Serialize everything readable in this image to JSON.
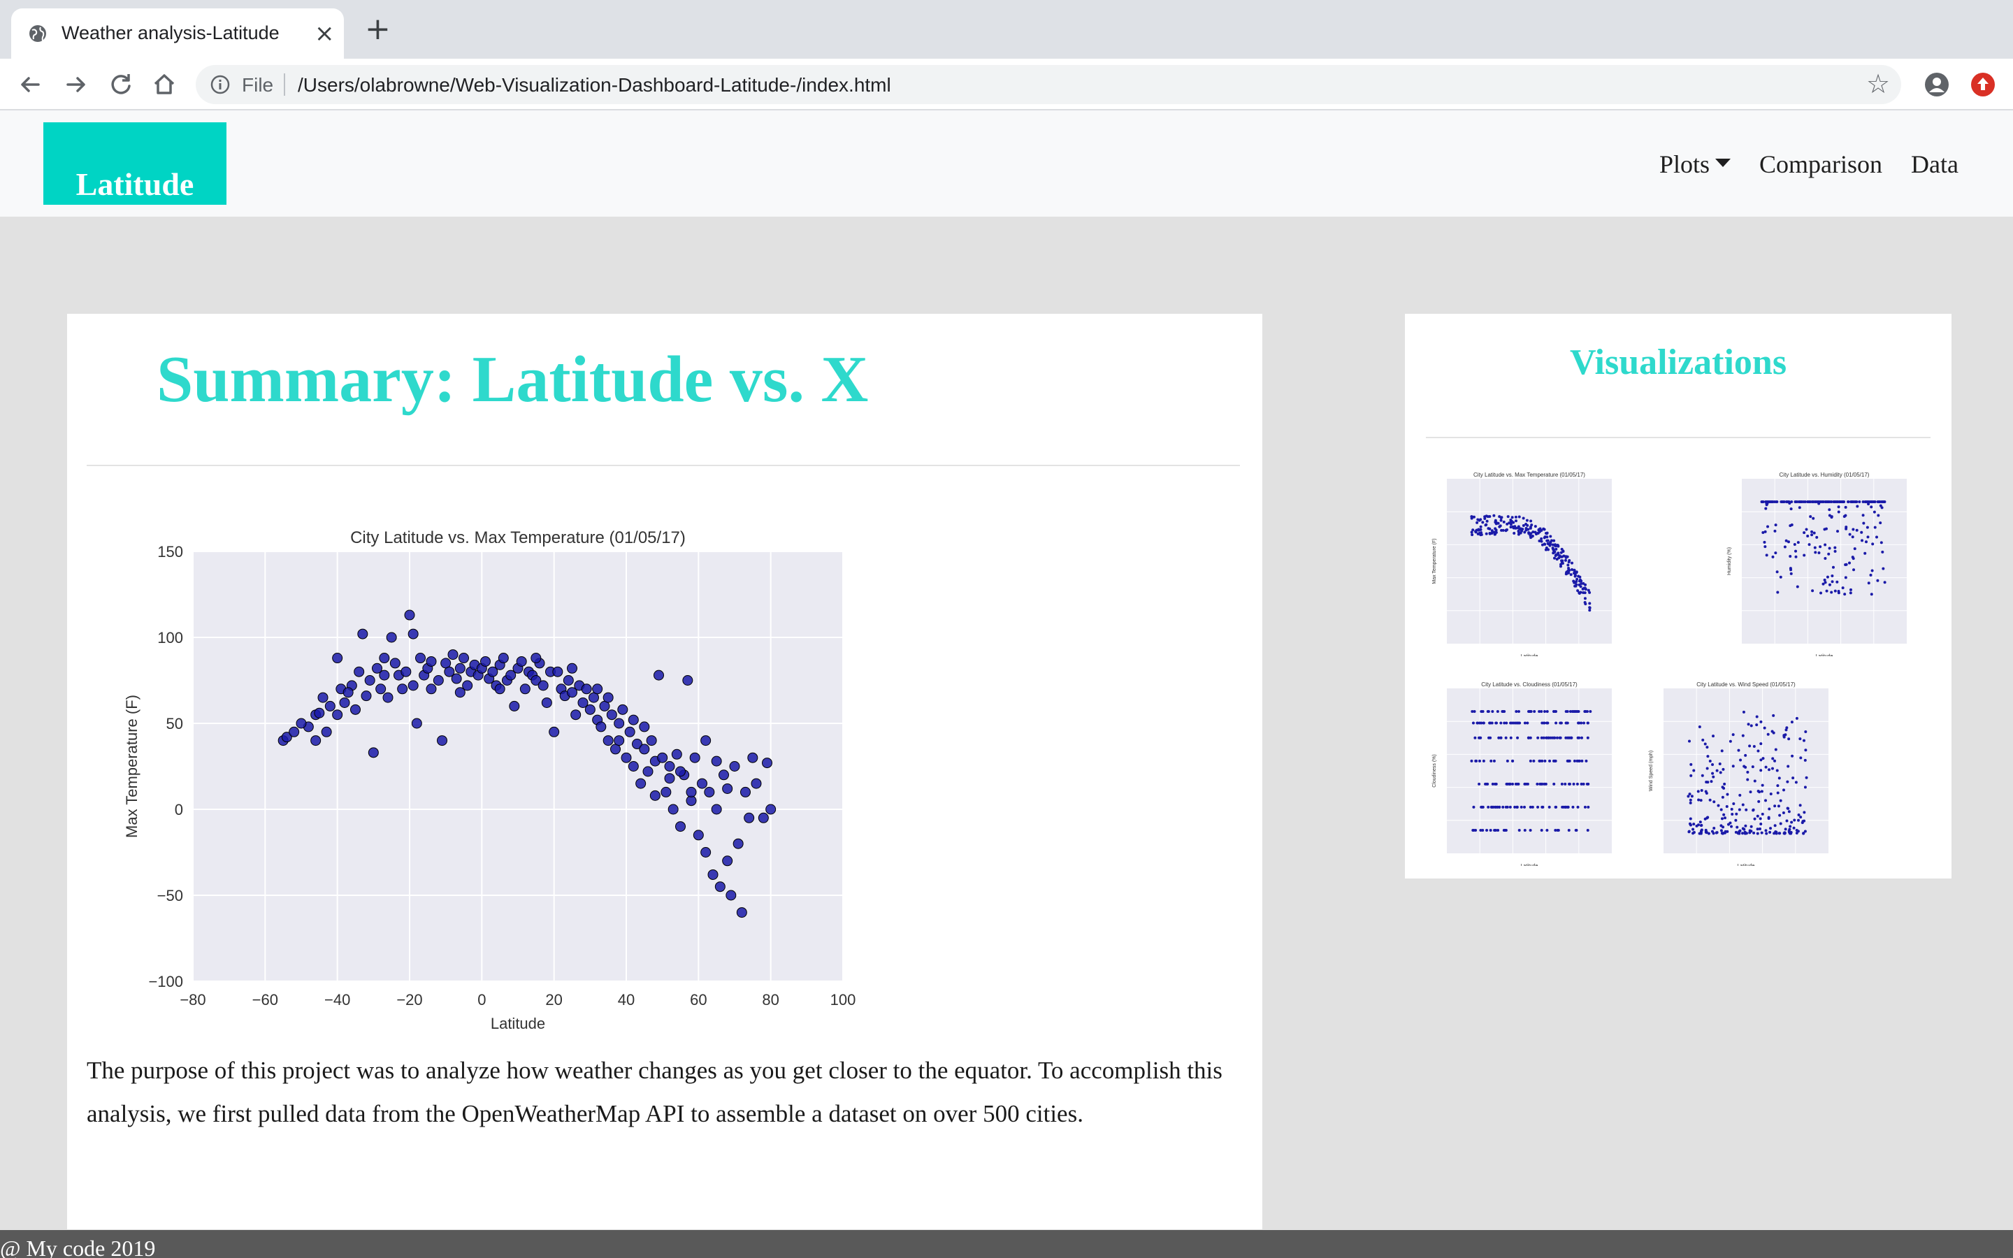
{
  "browser": {
    "tab_title": "Weather analysis-Latitude",
    "file_label": "File",
    "url": "/Users/olabrowne/Web-Visualization-Dashboard-Latitude-/index.html"
  },
  "nav": {
    "brand": "Latitude",
    "links": [
      "Plots",
      "Comparison",
      "Data"
    ]
  },
  "main": {
    "title": "Summary: Latitude vs. X",
    "description": "The purpose of this project was to analyze how weather changes as you get closer to the equator. To accomplish this analysis, we first pulled data from the OpenWeatherMap API to assemble a dataset on over 500 cities."
  },
  "side": {
    "title": "Visualizations"
  },
  "footer": {
    "text": "@ My code 2019"
  },
  "colors": {
    "brand": "#00d4c4",
    "heading": "#2ed9cc",
    "plot_bg": "#eaeaf2",
    "marker": "#1a1aa8"
  },
  "chart_data": [
    {
      "type": "scatter",
      "title": "City Latitude vs. Max Temperature (01/05/17)",
      "xlabel": "Latitude",
      "ylabel": "Max Temperature (F)",
      "xlim": [
        -80,
        100
      ],
      "ylim": [
        -100,
        150
      ],
      "xticks": [
        -80,
        -60,
        -40,
        -20,
        0,
        20,
        40,
        60,
        80,
        100
      ],
      "yticks": [
        -100,
        -50,
        0,
        50,
        100,
        150
      ],
      "grid": true,
      "points": [
        [
          -55,
          40
        ],
        [
          -54,
          42
        ],
        [
          -52,
          45
        ],
        [
          -48,
          48
        ],
        [
          -46,
          55
        ],
        [
          -45,
          56
        ],
        [
          -46,
          40
        ],
        [
          -44,
          65
        ],
        [
          -43,
          45
        ],
        [
          -42,
          60
        ],
        [
          -40,
          88
        ],
        [
          -40,
          55
        ],
        [
          -39,
          70
        ],
        [
          -38,
          62
        ],
        [
          -36,
          72
        ],
        [
          -35,
          58
        ],
        [
          -34,
          80
        ],
        [
          -33,
          102
        ],
        [
          -32,
          66
        ],
        [
          -31,
          75
        ],
        [
          -30,
          33
        ],
        [
          -29,
          82
        ],
        [
          -28,
          70
        ],
        [
          -27,
          78
        ],
        [
          -26,
          65
        ],
        [
          -25,
          100
        ],
        [
          -24,
          85
        ],
        [
          -23,
          78
        ],
        [
          -22,
          70
        ],
        [
          -21,
          80
        ],
        [
          -20,
          113
        ],
        [
          -19,
          102
        ],
        [
          -19,
          72
        ],
        [
          -18,
          50
        ],
        [
          -17,
          88
        ],
        [
          -16,
          78
        ],
        [
          -15,
          82
        ],
        [
          -14,
          70
        ],
        [
          -12,
          75
        ],
        [
          -11,
          40
        ],
        [
          -10,
          85
        ],
        [
          -9,
          80
        ],
        [
          -8,
          90
        ],
        [
          -7,
          76
        ],
        [
          -6,
          82
        ],
        [
          -5,
          88
        ],
        [
          -4,
          72
        ],
        [
          -3,
          80
        ],
        [
          -2,
          84
        ],
        [
          -1,
          78
        ],
        [
          0,
          82
        ],
        [
          1,
          86
        ],
        [
          2,
          76
        ],
        [
          3,
          80
        ],
        [
          4,
          72
        ],
        [
          5,
          84
        ],
        [
          6,
          88
        ],
        [
          7,
          75
        ],
        [
          8,
          78
        ],
        [
          9,
          60
        ],
        [
          10,
          82
        ],
        [
          11,
          86
        ],
        [
          12,
          70
        ],
        [
          13,
          80
        ],
        [
          14,
          78
        ],
        [
          15,
          75
        ],
        [
          16,
          85
        ],
        [
          17,
          72
        ],
        [
          18,
          62
        ],
        [
          19,
          80
        ],
        [
          20,
          45
        ],
        [
          21,
          80
        ],
        [
          22,
          70
        ],
        [
          23,
          66
        ],
        [
          24,
          75
        ],
        [
          25,
          68
        ],
        [
          26,
          55
        ],
        [
          27,
          72
        ],
        [
          28,
          62
        ],
        [
          29,
          70
        ],
        [
          30,
          58
        ],
        [
          31,
          65
        ],
        [
          32,
          52
        ],
        [
          33,
          48
        ],
        [
          34,
          60
        ],
        [
          35,
          40
        ],
        [
          36,
          55
        ],
        [
          37,
          35
        ],
        [
          38,
          50
        ],
        [
          39,
          58
        ],
        [
          40,
          30
        ],
        [
          41,
          45
        ],
        [
          42,
          25
        ],
        [
          43,
          38
        ],
        [
          44,
          15
        ],
        [
          45,
          35
        ],
        [
          46,
          22
        ],
        [
          47,
          40
        ],
        [
          48,
          28
        ],
        [
          49,
          78
        ],
        [
          50,
          30
        ],
        [
          51,
          10
        ],
        [
          52,
          25
        ],
        [
          53,
          0
        ],
        [
          54,
          32
        ],
        [
          55,
          -10
        ],
        [
          56,
          20
        ],
        [
          57,
          75
        ],
        [
          58,
          5
        ],
        [
          59,
          30
        ],
        [
          60,
          -15
        ],
        [
          61,
          15
        ],
        [
          62,
          -25
        ],
        [
          63,
          10
        ],
        [
          64,
          -38
        ],
        [
          65,
          0
        ],
        [
          66,
          -45
        ],
        [
          67,
          20
        ],
        [
          68,
          -30
        ],
        [
          69,
          -50
        ],
        [
          70,
          25
        ],
        [
          71,
          -20
        ],
        [
          72,
          -60
        ],
        [
          73,
          10
        ],
        [
          74,
          -5
        ],
        [
          75,
          30
        ],
        [
          76,
          15
        ],
        [
          78,
          -5
        ],
        [
          79,
          27
        ],
        [
          80,
          0
        ],
        [
          -50,
          50
        ],
        [
          -37,
          68
        ],
        [
          -27,
          88
        ],
        [
          -14,
          86
        ],
        [
          -6,
          68
        ],
        [
          5,
          70
        ],
        [
          15,
          88
        ],
        [
          25,
          82
        ],
        [
          35,
          65
        ],
        [
          45,
          48
        ],
        [
          55,
          22
        ],
        [
          65,
          28
        ],
        [
          58,
          10
        ],
        [
          62,
          40
        ],
        [
          68,
          12
        ],
        [
          52,
          18
        ],
        [
          48,
          8
        ],
        [
          42,
          52
        ],
        [
          38,
          40
        ],
        [
          32,
          70
        ]
      ]
    },
    {
      "type": "scatter",
      "title": "City Latitude vs. Max Temperature (01/05/17)",
      "xlabel": "Latitude",
      "ylabel": "Max Temperature (F)",
      "xlim": [
        -80,
        100
      ],
      "ylim": [
        -100,
        150
      ],
      "points": []
    },
    {
      "type": "scatter",
      "title": "City Latitude vs. Humidity (01/05/17)",
      "xlabel": "Latitude",
      "ylabel": "Humidity (%)",
      "xlim": [
        -80,
        100
      ],
      "ylim": [
        -20,
        120
      ],
      "points": []
    },
    {
      "type": "scatter",
      "title": "City Latitude vs. Cloudiness (01/05/17)",
      "xlabel": "Latitude",
      "ylabel": "Cloudiness (%)",
      "xlim": [
        -80,
        100
      ],
      "ylim": [
        -20,
        120
      ],
      "points": []
    },
    {
      "type": "scatter",
      "title": "City Latitude vs. Wind Speed (01/05/17)",
      "xlabel": "Latitude",
      "ylabel": "Wind Speed (mph)",
      "xlim": [
        -80,
        100
      ],
      "ylim": [
        -5,
        40
      ],
      "points": []
    }
  ]
}
